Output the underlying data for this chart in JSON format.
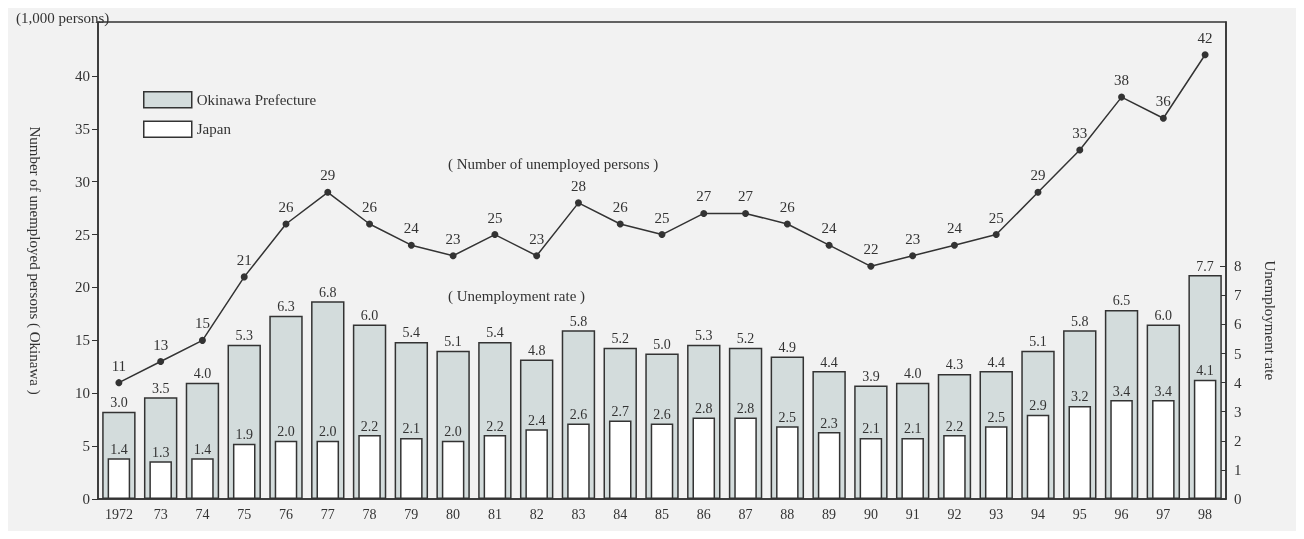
{
  "chart_data": {
    "type": "bar",
    "ylabel": "Number of unemployed persons ( Okinawa )",
    "y2label": "Unemployment rate",
    "annotations": [
      "(1,000 persons)",
      "( Number of unemployed persons )",
      "( Unemployment rate )"
    ],
    "categories": [
      "1972",
      "73",
      "74",
      "75",
      "76",
      "77",
      "78",
      "79",
      "80",
      "81",
      "82",
      "83",
      "84",
      "85",
      "86",
      "87",
      "88",
      "89",
      "90",
      "91",
      "92",
      "93",
      "94",
      "95",
      "96",
      "97",
      "98"
    ],
    "series": [
      {
        "name": "Okinawa Prefecture",
        "axis": "y2",
        "color": "#d3dcdc",
        "values": [
          3.0,
          3.5,
          4.0,
          5.3,
          6.3,
          6.8,
          6.0,
          5.4,
          5.1,
          5.4,
          4.8,
          5.8,
          5.2,
          5.0,
          5.3,
          5.2,
          4.9,
          4.4,
          3.9,
          4.0,
          4.3,
          4.4,
          5.1,
          5.8,
          6.5,
          6.0,
          7.7
        ],
        "value_labels": [
          "3.0",
          "3.5",
          "4.0",
          "5.3",
          "6.3",
          "6.8",
          "6.0",
          "5.4",
          "5.1",
          "5.4",
          "4.8",
          "5.8",
          "5.2",
          "5.0",
          "5.3",
          "5.2",
          "4.9",
          "4.4",
          "3.9",
          "4.0",
          "4.3",
          "4.4",
          "5.1",
          "5.8",
          "6.5",
          "6.0",
          "7.7"
        ]
      },
      {
        "name": "Japan",
        "axis": "y2",
        "color": "#ffffff",
        "values": [
          1.4,
          1.3,
          1.4,
          1.9,
          2.0,
          2.0,
          2.2,
          2.1,
          2.0,
          2.2,
          2.4,
          2.6,
          2.7,
          2.6,
          2.8,
          2.8,
          2.5,
          2.3,
          2.1,
          2.1,
          2.2,
          2.5,
          2.9,
          3.2,
          3.4,
          3.4,
          4.1
        ],
        "value_labels": [
          "1.4",
          "1.3",
          "1.4",
          "1.9",
          "2.0",
          "2.0",
          "2.2",
          "2.1",
          "2.0",
          "2.2",
          "2.4",
          "2.6",
          "2.7",
          "2.6",
          "2.8",
          "2.8",
          "2.5",
          "2.3",
          "2.1",
          "2.1",
          "2.2",
          "2.5",
          "2.9",
          "3.2",
          "3.4",
          "3.4",
          "4.1"
        ]
      },
      {
        "type": "line",
        "color": "#333333",
        "data_labels": true,
        "values": [
          11,
          13,
          15,
          21,
          26,
          29,
          26,
          24,
          23,
          25,
          23,
          28,
          26,
          25,
          27,
          27,
          26,
          24,
          22,
          23,
          24,
          25,
          29,
          33,
          38,
          36,
          42
        ]
      }
    ],
    "ylim": [
      0,
      45.1
    ],
    "yticks": [
      0,
      5,
      10,
      15,
      20,
      25,
      30,
      35,
      40
    ],
    "y2lim": [
      0,
      16.4
    ],
    "y2ticks": [
      0,
      1,
      2,
      3,
      4,
      5,
      6,
      7,
      8
    ],
    "marker": "circle",
    "line_style": "solid",
    "grid": false,
    "legend": "top left"
  }
}
